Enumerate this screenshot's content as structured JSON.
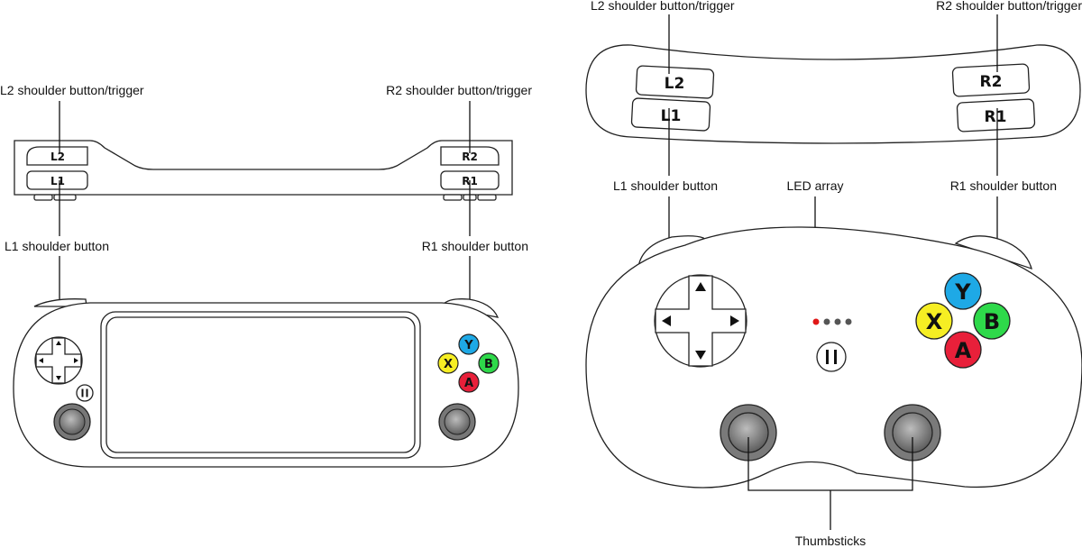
{
  "handheld": {
    "labels": {
      "l2_trigger": "L2 shoulder button/trigger",
      "r2_trigger": "R2 shoulder button/trigger",
      "l1_button": "L1 shoulder button",
      "r1_button": "R1 shoulder button"
    },
    "buttons": {
      "l2": "L2",
      "l1": "L1",
      "r2": "R2",
      "r1": "R1",
      "y": "Y",
      "x": "X",
      "b": "B",
      "a": "A"
    }
  },
  "gamepad": {
    "labels": {
      "l2_trigger": "L2 shoulder button/trigger",
      "r2_trigger": "R2 shoulder button/trigger",
      "l1_button": "L1 shoulder button",
      "r1_button": "R1 shoulder button",
      "led_array": "LED array",
      "thumbsticks": "Thumbsticks"
    },
    "buttons": {
      "l2": "L2",
      "l1": "L1",
      "r2": "R2",
      "r1": "R1",
      "y": "Y",
      "x": "X",
      "b": "B",
      "a": "A"
    }
  },
  "colors": {
    "y": "#1ea9e6",
    "x": "#f6ee23",
    "b": "#2ed94a",
    "a": "#e8203a",
    "led": "#e01818",
    "stick_outer": "#9a9a9a",
    "stick_inner": "#6e6e6e"
  }
}
